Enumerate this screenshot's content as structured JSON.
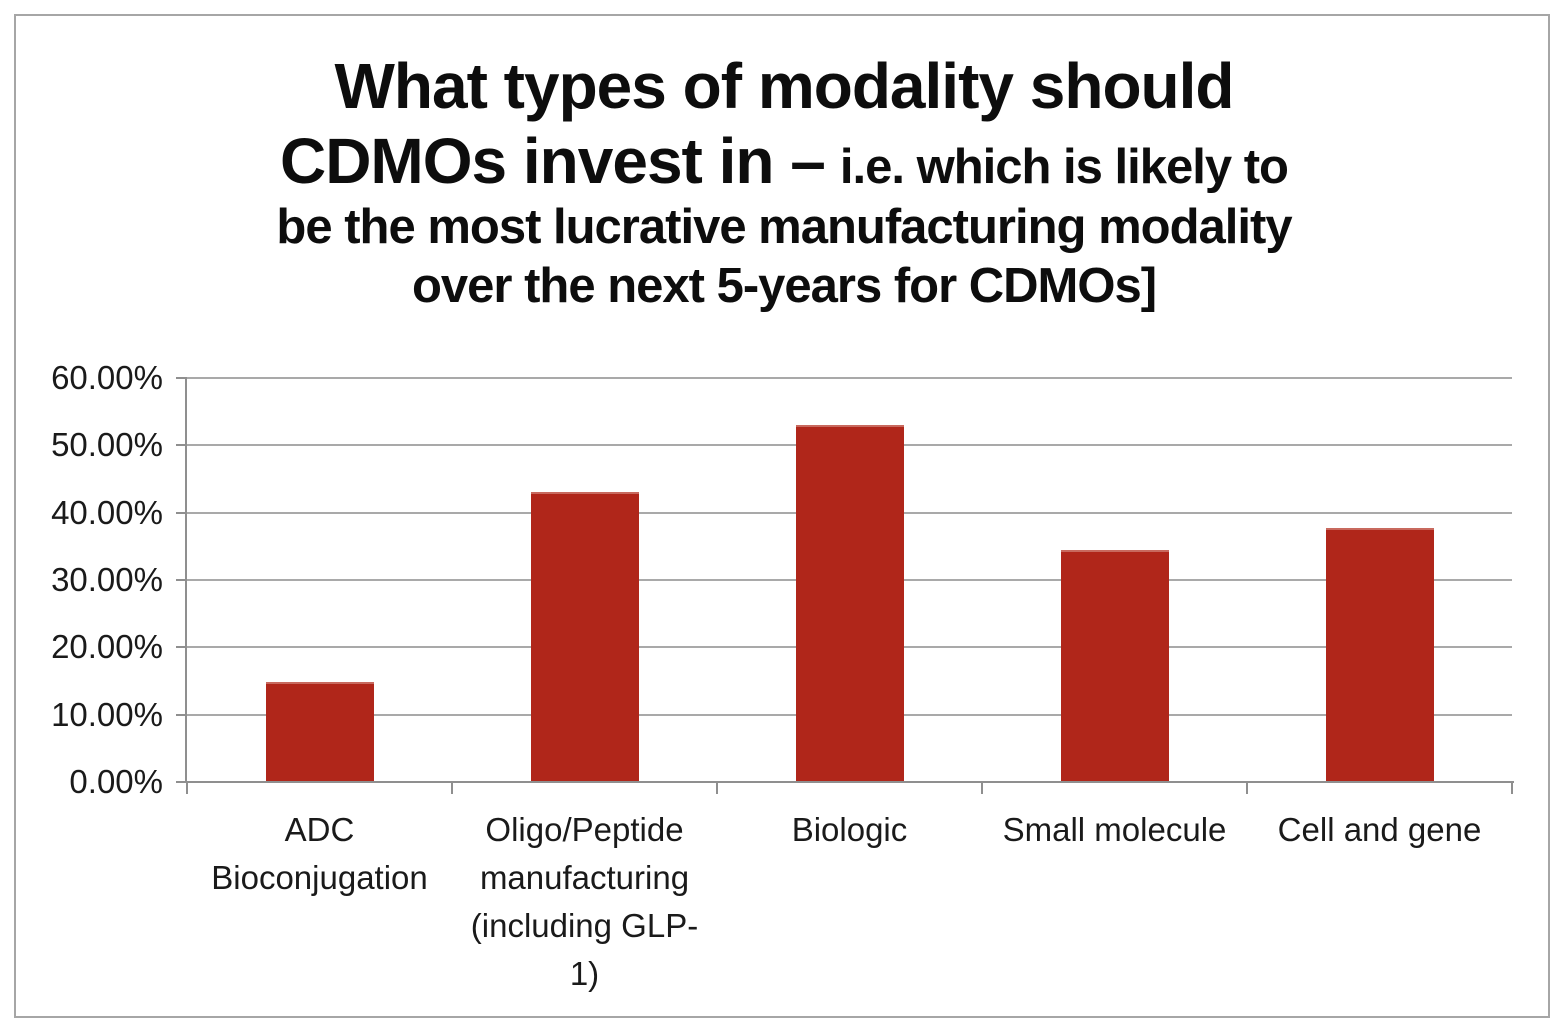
{
  "title": {
    "line1": "What types of modality should",
    "line2a": "CDMOs invest in –",
    "line2b": "i.e. which is likely to",
    "line3": "be the most lucrative manufacturing modality",
    "line4": "over the next 5-years for CDMOs]"
  },
  "chart_data": {
    "type": "bar",
    "title": "What types of modality should CDMOs invest in – i.e. which is likely to be the most lucrative manufacturing modality over the next 5-years for CDMOs]",
    "categories": [
      "ADC Bioconjugation",
      "Oligo/Peptide manufacturing (including GLP-1)",
      "Biologic",
      "Small molecule",
      "Cell and gene"
    ],
    "values": [
      14.8,
      43,
      53,
      34.5,
      37.7
    ],
    "xlabel": "",
    "ylabel": "",
    "ylim": [
      0,
      60
    ],
    "yticks": [
      "0.00%",
      "10.00%",
      "20.00%",
      "30.00%",
      "40.00%",
      "50.00%",
      "60.00%"
    ],
    "grid": true,
    "legend": false,
    "bar_color": "#B0261A",
    "colors": {
      "grid": "#A9A9A9",
      "axis": "#8F8F8F",
      "frame_border": "#A6A6A6",
      "text": "#1A1A1A",
      "background": "#FFFFFF"
    }
  }
}
